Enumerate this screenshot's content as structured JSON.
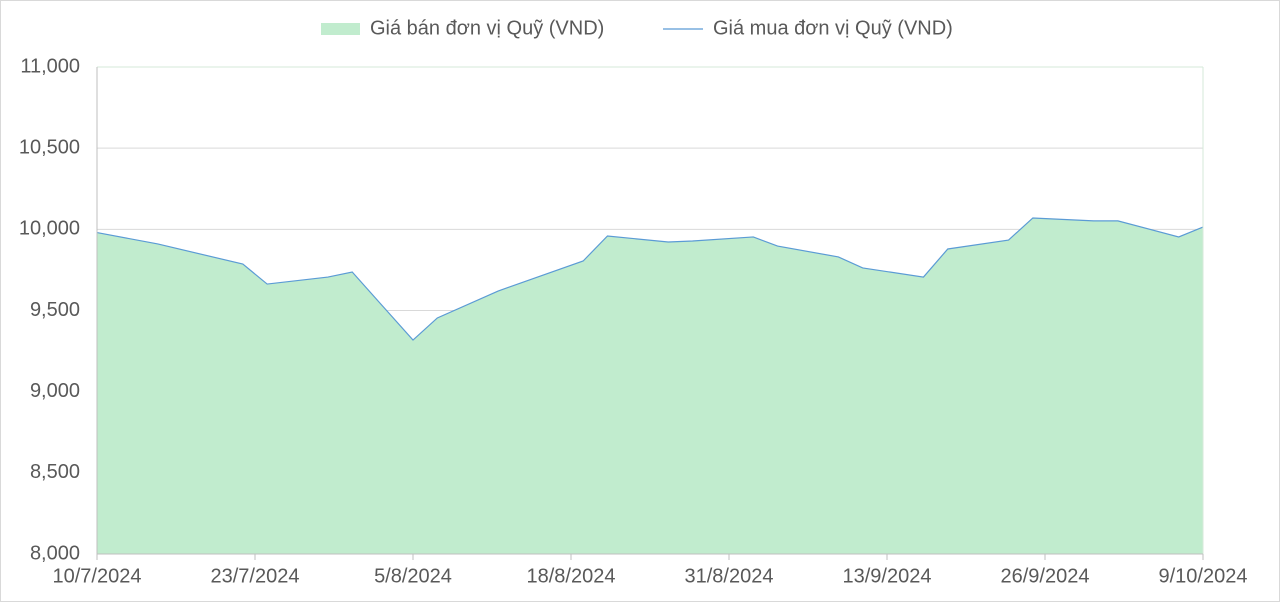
{
  "chart_data": {
    "type": "area-line",
    "x": [
      "10/7/2024",
      "15/7/2024",
      "22/7/2024",
      "24/7/2024",
      "29/7/2024",
      "31/7/2024",
      "5/8/2024",
      "7/8/2024",
      "12/8/2024",
      "19/8/2024",
      "21/8/2024",
      "26/8/2024",
      "28/8/2024",
      "2/9/2024",
      "4/9/2024",
      "9/9/2024",
      "11/9/2024",
      "16/9/2024",
      "18/9/2024",
      "23/9/2024",
      "25/9/2024",
      "30/9/2024",
      "2/10/2024",
      "7/10/2024",
      "9/10/2024"
    ],
    "series": [
      {
        "name": "Giá bán đơn vị Quỹ (VND)",
        "color": "#c1ecce",
        "values": [
          9980,
          9910,
          9786,
          9663,
          9706,
          9737,
          9318,
          9454,
          9620,
          9805,
          9959,
          9922,
          9928,
          9953,
          9897,
          9830,
          9762,
          9706,
          9879,
          9934,
          10070,
          10052,
          10052,
          9953,
          10014
        ]
      },
      {
        "name": "Giá mua đơn vị Quỹ (VND)",
        "color": "#5b9bd5",
        "values": [
          9980,
          9910,
          9786,
          9663,
          9706,
          9737,
          9318,
          9454,
          9620,
          9805,
          9959,
          9922,
          9928,
          9953,
          9897,
          9830,
          9762,
          9706,
          9879,
          9934,
          10070,
          10052,
          10052,
          9953,
          10014
        ]
      }
    ],
    "xlim": [
      "10/7/2024",
      "9/10/2024"
    ],
    "xticks": [
      "10/7/2024",
      "23/7/2024",
      "5/8/2024",
      "18/8/2024",
      "31/8/2024",
      "13/9/2024",
      "26/9/2024",
      "9/10/2024"
    ],
    "ylim": [
      8000,
      11000
    ],
    "yticks": [
      {
        "value": 8000,
        "label": "8,000"
      },
      {
        "value": 8500,
        "label": "8,500"
      },
      {
        "value": 9000,
        "label": "9,000"
      },
      {
        "value": 9500,
        "label": "9,500"
      },
      {
        "value": 10000,
        "label": "10,000"
      },
      {
        "value": 10500,
        "label": "10,500"
      },
      {
        "value": 11000,
        "label": "11,000"
      }
    ],
    "grid": true
  }
}
